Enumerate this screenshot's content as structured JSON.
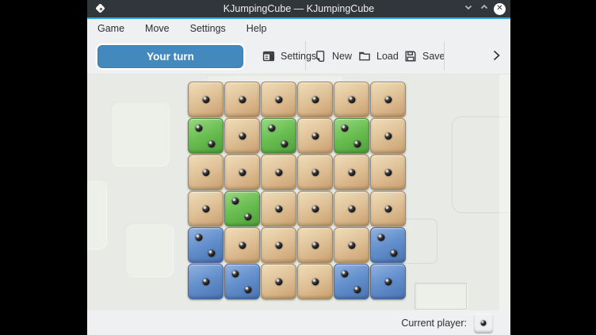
{
  "window": {
    "title": "KJumpingCube — KJumpingCube",
    "app_icon": "die-icon",
    "controls": [
      {
        "name": "minimize",
        "icon": "chevron-down-icon"
      },
      {
        "name": "maximize",
        "icon": "chevron-up-icon"
      },
      {
        "name": "close",
        "icon": "close-x-icon",
        "glyph": "✕"
      }
    ],
    "accent_color": "#35a3dc",
    "titlebar_color": "#31363b"
  },
  "menu": {
    "items": [
      {
        "label": "Game"
      },
      {
        "label": "Move"
      },
      {
        "label": "Settings"
      },
      {
        "label": "Help"
      }
    ]
  },
  "toolbar": {
    "turn_button": {
      "label": "Your turn",
      "color": "#4389bd"
    },
    "buttons": [
      {
        "label": "Settings",
        "icon": "settings-icon"
      },
      {
        "label": "New",
        "icon": "new-document-icon"
      },
      {
        "label": "Load",
        "icon": "open-folder-icon"
      },
      {
        "label": "Save",
        "icon": "save-floppy-icon"
      }
    ],
    "overflow_icon": "chevron-right-icon"
  },
  "board": {
    "rows_count": 6,
    "cols_count": 6,
    "legend": {
      "n": "neutral-tan",
      "g": "green-player",
      "b": "blue-player"
    },
    "rows": [
      [
        "n1",
        "n1",
        "n1",
        "n1",
        "n1",
        "n1"
      ],
      [
        "g2",
        "n1",
        "g2",
        "n1",
        "g2",
        "n1"
      ],
      [
        "n1",
        "n1",
        "n1",
        "n1",
        "n1",
        "n1"
      ],
      [
        "n1",
        "g2",
        "n1",
        "n1",
        "n1",
        "n1"
      ],
      [
        "b2",
        "n1",
        "n1",
        "n1",
        "n1",
        "b2"
      ],
      [
        "b1",
        "b2",
        "n1",
        "n1",
        "b2",
        "b1"
      ]
    ],
    "colors": {
      "neutral": "#e0c298",
      "green": "#6abf51",
      "blue": "#6390cd"
    }
  },
  "statusbar": {
    "label": "Current player:",
    "current_player": "green",
    "current_player_value": 1
  }
}
